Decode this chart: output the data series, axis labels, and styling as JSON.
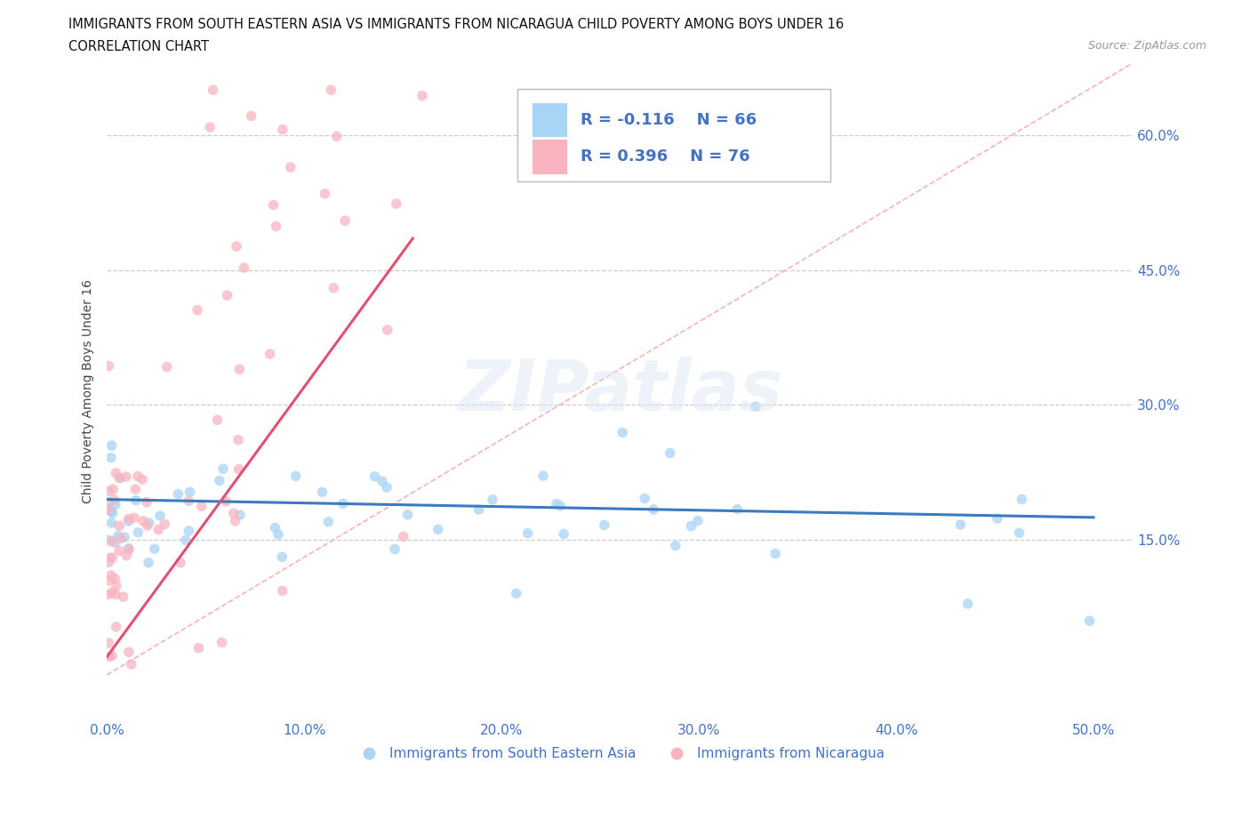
{
  "title_line1": "IMMIGRANTS FROM SOUTH EASTERN ASIA VS IMMIGRANTS FROM NICARAGUA CHILD POVERTY AMONG BOYS UNDER 16",
  "title_line2": "CORRELATION CHART",
  "source_text": "Source: ZipAtlas.com",
  "ylabel": "Child Poverty Among Boys Under 16",
  "xlim": [
    0.0,
    0.52
  ],
  "ylim": [
    -0.05,
    0.68
  ],
  "xtick_labels": [
    "0.0%",
    "10.0%",
    "20.0%",
    "30.0%",
    "40.0%",
    "50.0%"
  ],
  "xtick_values": [
    0.0,
    0.1,
    0.2,
    0.3,
    0.4,
    0.5
  ],
  "ytick_labels": [
    "15.0%",
    "30.0%",
    "45.0%",
    "60.0%"
  ],
  "ytick_values": [
    0.15,
    0.3,
    0.45,
    0.6
  ],
  "grid_color": "#cccccc",
  "blue_color": "#a8d4f5",
  "pink_color": "#f9b4c0",
  "blue_line_color": "#3a7abf",
  "pink_line_color": "#e05070",
  "diag_line_color": "#f0a0b0",
  "legend_r_blue": "R = -0.116",
  "legend_n_blue": "N = 66",
  "legend_r_pink": "R = 0.396",
  "legend_n_pink": "N = 76",
  "legend_label_blue": "Immigrants from South Eastern Asia",
  "legend_label_pink": "Immigrants from Nicaragua",
  "watermark": "ZIPatlas"
}
